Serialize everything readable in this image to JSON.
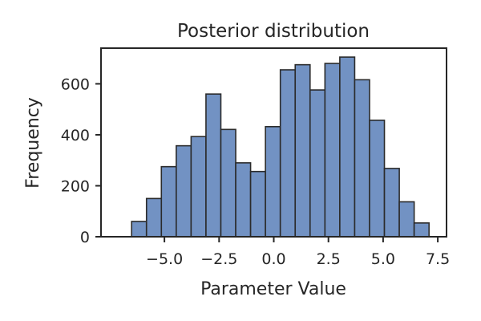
{
  "chart_data": {
    "type": "bar",
    "title": "Posterior distribution",
    "xlabel": "Parameter Value",
    "ylabel": "Frequency",
    "xlim": [
      -7.9,
      7.9
    ],
    "ylim": [
      0,
      740
    ],
    "bin_width": 0.68,
    "bins": [
      {
        "x0": -6.5,
        "count": 60
      },
      {
        "x0": -5.82,
        "count": 150
      },
      {
        "x0": -5.14,
        "count": 275
      },
      {
        "x0": -4.46,
        "count": 357
      },
      {
        "x0": -3.78,
        "count": 393
      },
      {
        "x0": -3.1,
        "count": 560
      },
      {
        "x0": -2.42,
        "count": 421
      },
      {
        "x0": -1.74,
        "count": 290
      },
      {
        "x0": -1.06,
        "count": 256
      },
      {
        "x0": -0.38,
        "count": 432
      },
      {
        "x0": 0.3,
        "count": 655
      },
      {
        "x0": 0.98,
        "count": 675
      },
      {
        "x0": 1.66,
        "count": 576
      },
      {
        "x0": 2.34,
        "count": 680
      },
      {
        "x0": 3.02,
        "count": 705
      },
      {
        "x0": 3.7,
        "count": 616
      },
      {
        "x0": 4.38,
        "count": 457
      },
      {
        "x0": 5.06,
        "count": 268
      },
      {
        "x0": 5.74,
        "count": 137
      },
      {
        "x0": 6.42,
        "count": 54
      }
    ],
    "xticks": [
      -5.0,
      -2.5,
      0.0,
      2.5,
      5.0,
      7.5
    ],
    "xtick_labels": [
      "−5.0",
      "−2.5",
      "0.0",
      "2.5",
      "5.0",
      "7.5"
    ],
    "yticks": [
      0,
      200,
      400,
      600
    ],
    "ytick_labels": [
      "0",
      "200",
      "400",
      "600"
    ],
    "grid": false,
    "colors": {
      "bar_fill": "#7292c3",
      "bar_edge": "#2b2b2b",
      "axis": "#262626"
    }
  }
}
